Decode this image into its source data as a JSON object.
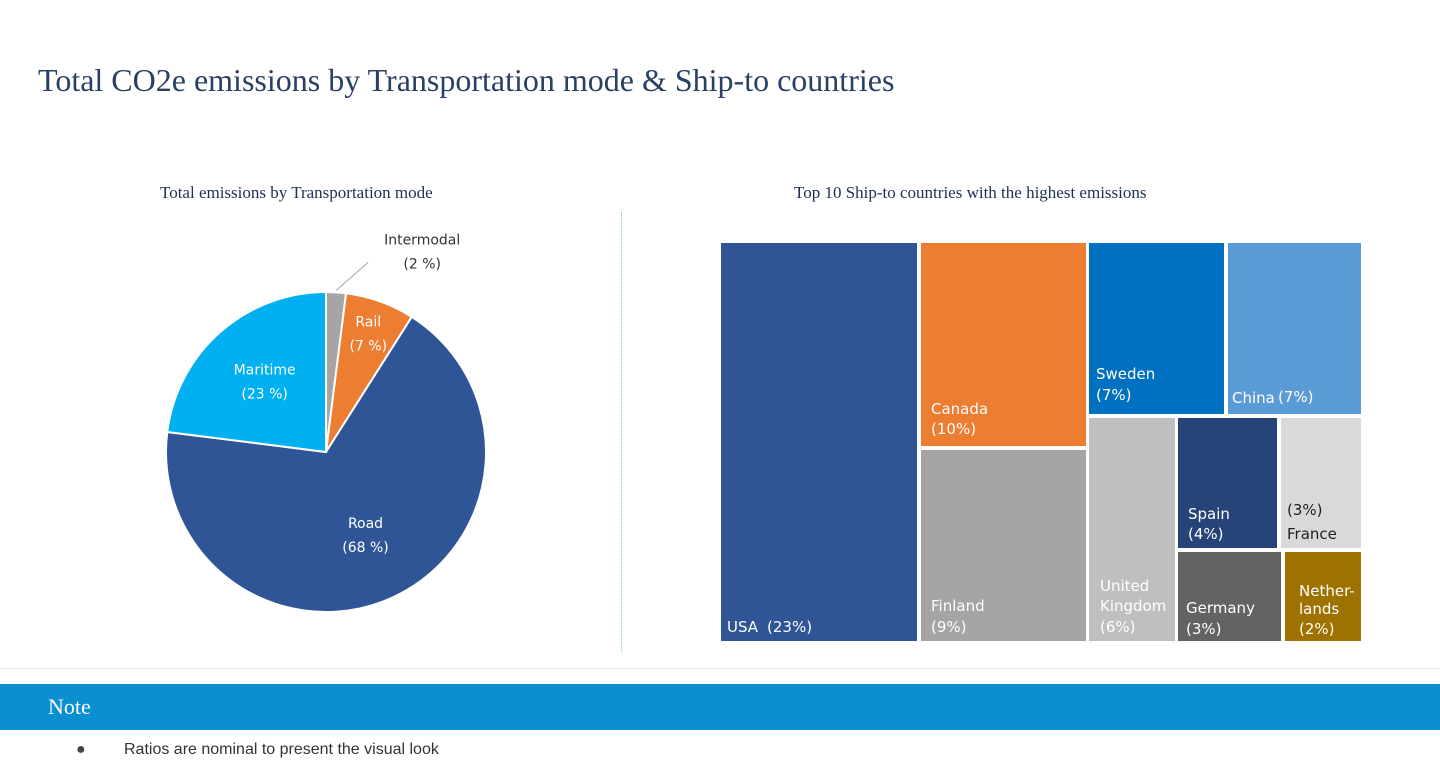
{
  "page": {
    "title": "Total CO2e emissions by Transportation mode & Ship-to countries"
  },
  "note": {
    "label": "Note",
    "items": [
      "Ratios are nominal to present the visual look"
    ]
  },
  "chart_data": [
    {
      "type": "pie",
      "title": "Total emissions by Transportation mode",
      "slices": [
        {
          "label": "Intermodal",
          "value": 2,
          "value_label": "(2 %)",
          "color": "#a5a5a5"
        },
        {
          "label": "Rail",
          "value": 7,
          "value_label": "(7 %)",
          "color": "#ed7d31"
        },
        {
          "label": "Road",
          "value": 68,
          "value_label": "(68 %)",
          "color": "#2f5597"
        },
        {
          "label": "Maritime",
          "value": 23,
          "value_label": "(23 %)",
          "color": "#00b0f0"
        }
      ]
    },
    {
      "type": "treemap",
      "title": "Top 10 Ship-to countries with the highest emissions",
      "items": [
        {
          "label": "USA",
          "value": 23,
          "value_label": "(23%)",
          "color": "#2f5597"
        },
        {
          "label": "Canada",
          "value": 10,
          "value_label": "(10%)",
          "color": "#ed7d31"
        },
        {
          "label": "Finland",
          "value": 9,
          "value_label": "(9%)",
          "color": "#a5a5a5"
        },
        {
          "label": "Sweden",
          "value": 7,
          "value_label": "(7%)",
          "color": "#0070c0"
        },
        {
          "label": "China",
          "value": 7,
          "value_label": "(7%)",
          "color": "#5b9bd5"
        },
        {
          "label": "United Kingdom",
          "value": 6,
          "value_label": "(6%)",
          "color": "#bfbfbf"
        },
        {
          "label": "Spain",
          "value": 4,
          "value_label": "(4%)",
          "color": "#264478"
        },
        {
          "label": "France",
          "value": 3,
          "value_label": "(3%)",
          "color": "#d9d9d9"
        },
        {
          "label": "Germany",
          "value": 3,
          "value_label": "(3%)",
          "color": "#636363"
        },
        {
          "label": "Netherlands",
          "value": 2,
          "value_label": "(2%)",
          "color": "#9e7200"
        }
      ]
    }
  ]
}
